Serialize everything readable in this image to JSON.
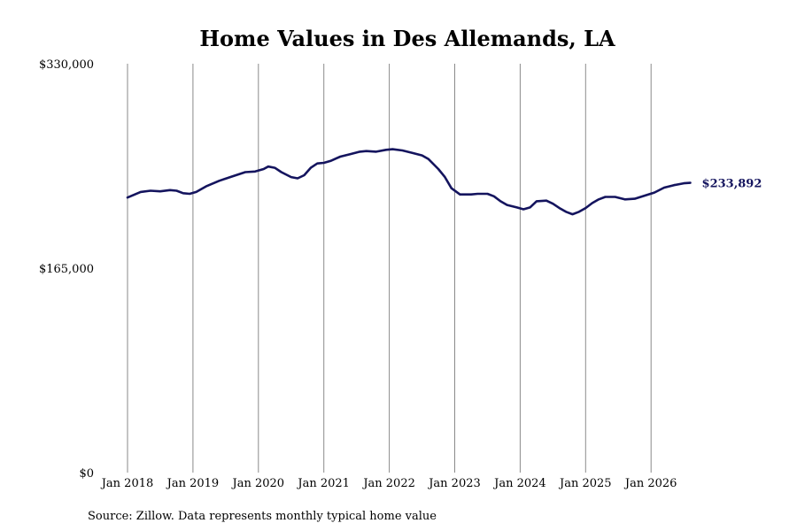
{
  "chart_data": {
    "type": "line",
    "title": "Home Values in Des Allemands, LA",
    "source": "Source: Zillow. Data represents monthly typical home value",
    "y_ticks": [
      {
        "value": 330000,
        "label": "$330,000"
      },
      {
        "value": 165000,
        "label": "$165,000"
      },
      {
        "value": 0,
        "label": "$0"
      }
    ],
    "x_ticks": [
      {
        "value": 2018,
        "label": "Jan 2018"
      },
      {
        "value": 2019,
        "label": "Jan 2019"
      },
      {
        "value": 2020,
        "label": "Jan 2020"
      },
      {
        "value": 2021,
        "label": "Jan 2021"
      },
      {
        "value": 2022,
        "label": "Jan 2022"
      },
      {
        "value": 2023,
        "label": "Jan 2023"
      },
      {
        "value": 2024,
        "label": "Jan 2024"
      },
      {
        "value": 2025,
        "label": "Jan 2025"
      },
      {
        "value": 2026,
        "label": "Jan 2026"
      }
    ],
    "xlim": [
      2018,
      2026.6
    ],
    "ylim": [
      0,
      330000
    ],
    "grid": "vertical",
    "series": [
      {
        "color": "#14145e",
        "end_label": "$233,892",
        "points": [
          [
            2018.0,
            222000
          ],
          [
            2018.2,
            226500
          ],
          [
            2018.35,
            227500
          ],
          [
            2018.5,
            227000
          ],
          [
            2018.65,
            228000
          ],
          [
            2018.75,
            227500
          ],
          [
            2018.85,
            225500
          ],
          [
            2018.95,
            225000
          ],
          [
            2019.05,
            226500
          ],
          [
            2019.2,
            231000
          ],
          [
            2019.4,
            235500
          ],
          [
            2019.6,
            239000
          ],
          [
            2019.8,
            242500
          ],
          [
            2019.95,
            243000
          ],
          [
            2020.08,
            245000
          ],
          [
            2020.15,
            247000
          ],
          [
            2020.25,
            246000
          ],
          [
            2020.35,
            242500
          ],
          [
            2020.5,
            238500
          ],
          [
            2020.6,
            237500
          ],
          [
            2020.7,
            240000
          ],
          [
            2020.8,
            246000
          ],
          [
            2020.9,
            249500
          ],
          [
            2021.0,
            250000
          ],
          [
            2021.1,
            251500
          ],
          [
            2021.25,
            255000
          ],
          [
            2021.4,
            257000
          ],
          [
            2021.55,
            259000
          ],
          [
            2021.65,
            259500
          ],
          [
            2021.8,
            259000
          ],
          [
            2021.95,
            260500
          ],
          [
            2022.05,
            261000
          ],
          [
            2022.2,
            260000
          ],
          [
            2022.35,
            258000
          ],
          [
            2022.5,
            256000
          ],
          [
            2022.6,
            253000
          ],
          [
            2022.75,
            245000
          ],
          [
            2022.85,
            238500
          ],
          [
            2022.95,
            229500
          ],
          [
            2023.08,
            224500
          ],
          [
            2023.25,
            224500
          ],
          [
            2023.35,
            225000
          ],
          [
            2023.5,
            225000
          ],
          [
            2023.6,
            223000
          ],
          [
            2023.7,
            219000
          ],
          [
            2023.8,
            216000
          ],
          [
            2023.95,
            214000
          ],
          [
            2024.05,
            212500
          ],
          [
            2024.15,
            214000
          ],
          [
            2024.25,
            219000
          ],
          [
            2024.4,
            219500
          ],
          [
            2024.5,
            217000
          ],
          [
            2024.6,
            213500
          ],
          [
            2024.7,
            210500
          ],
          [
            2024.8,
            208500
          ],
          [
            2024.9,
            210500
          ],
          [
            2025.0,
            213500
          ],
          [
            2025.1,
            217500
          ],
          [
            2025.2,
            220500
          ],
          [
            2025.3,
            222500
          ],
          [
            2025.45,
            222500
          ],
          [
            2025.6,
            220500
          ],
          [
            2025.75,
            221000
          ],
          [
            2025.9,
            223500
          ],
          [
            2026.05,
            226000
          ],
          [
            2026.2,
            230000
          ],
          [
            2026.35,
            232000
          ],
          [
            2026.5,
            233500
          ],
          [
            2026.6,
            233892
          ]
        ]
      }
    ]
  }
}
